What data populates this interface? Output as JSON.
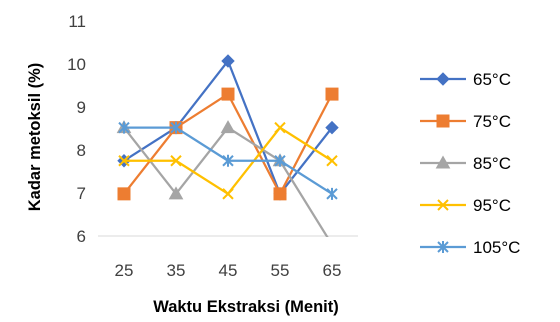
{
  "chart_data": {
    "type": "line",
    "title": "",
    "xlabel": "Waktu Ekstraksi (Menit)",
    "ylabel": "Kadar metoksil (%)",
    "x": [
      25,
      35,
      45,
      55,
      65
    ],
    "ylim": [
      6,
      11
    ],
    "yticks": [
      6,
      7,
      8,
      9,
      10,
      11
    ],
    "grid": false,
    "legend_position": "right",
    "series": [
      {
        "name": "65°C",
        "color": "#4472C4",
        "marker": "diamond",
        "values": [
          7.75,
          8.52,
          10.07,
          6.98,
          8.52
        ]
      },
      {
        "name": "75°C",
        "color": "#ED7D31",
        "marker": "square",
        "values": [
          6.98,
          8.52,
          9.3,
          6.98,
          9.3
        ]
      },
      {
        "name": "85°C",
        "color": "#A5A5A5",
        "marker": "triangle",
        "values": [
          8.52,
          6.98,
          8.52,
          7.75,
          5.8
        ]
      },
      {
        "name": "95°C",
        "color": "#FFC000",
        "marker": "x",
        "values": [
          7.75,
          7.75,
          6.98,
          8.52,
          7.75
        ]
      },
      {
        "name": "105°C",
        "color": "#5B9BD5",
        "marker": "star",
        "values": [
          8.52,
          8.52,
          7.75,
          7.75,
          6.98
        ]
      }
    ]
  }
}
